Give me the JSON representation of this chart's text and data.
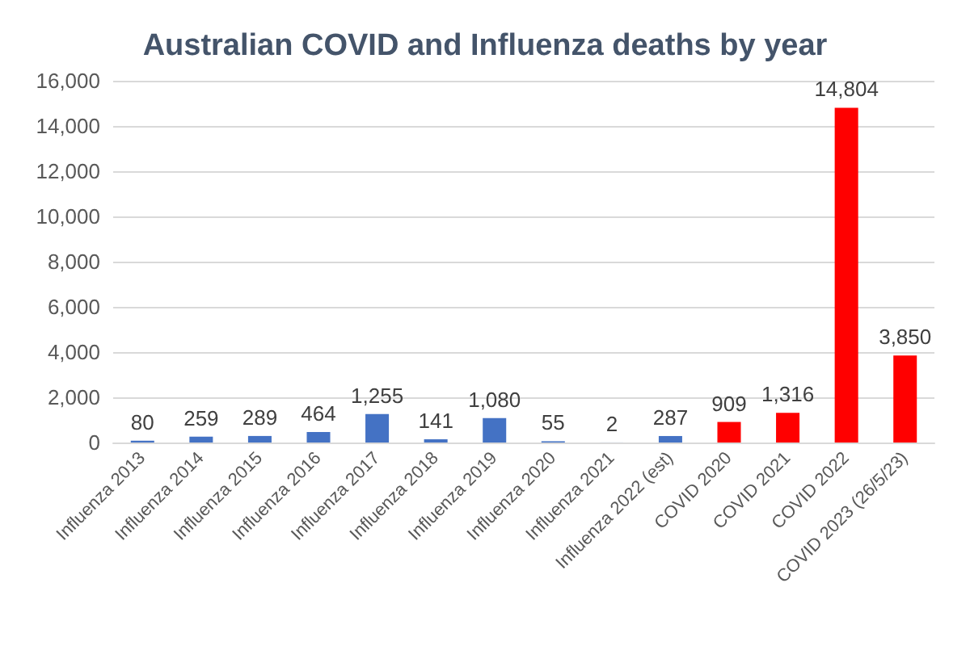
{
  "chart_data": {
    "type": "bar",
    "title": "Australian COVID and Influenza deaths by year",
    "categories": [
      "Influenza 2013",
      "Influenza 2014",
      "Influenza 2015",
      "Influenza 2016",
      "Influenza 2017",
      "Influenza 2018",
      "Influenza 2019",
      "Influenza 2020",
      "Influenza 2021",
      "Influenza 2022 (est)",
      "COVID 2020",
      "COVID 2021",
      "COVID 2022",
      "COVID 2023 (26/5/23)"
    ],
    "values": [
      80,
      259,
      289,
      464,
      1255,
      141,
      1080,
      55,
      2,
      287,
      909,
      1316,
      14804,
      3850
    ],
    "colors": [
      "#4472c4",
      "#4472c4",
      "#4472c4",
      "#4472c4",
      "#4472c4",
      "#4472c4",
      "#4472c4",
      "#4472c4",
      "#4472c4",
      "#4472c4",
      "#ff0000",
      "#ff0000",
      "#ff0000",
      "#ff0000"
    ],
    "value_labels": [
      "80",
      "259",
      "289",
      "464",
      "1,255",
      "141",
      "1,080",
      "55",
      "2",
      "287",
      "909",
      "1,316",
      "14,804",
      "3,850"
    ],
    "ylim": [
      0,
      16000
    ],
    "yticks": [
      {
        "value": 0,
        "label": "0"
      },
      {
        "value": 2000,
        "label": "2,000"
      },
      {
        "value": 4000,
        "label": "4,000"
      },
      {
        "value": 6000,
        "label": "6,000"
      },
      {
        "value": 8000,
        "label": "8,000"
      },
      {
        "value": 10000,
        "label": "10,000"
      },
      {
        "value": 12000,
        "label": "12,000"
      },
      {
        "value": 14000,
        "label": "14,000"
      },
      {
        "value": 16000,
        "label": "16,000"
      }
    ],
    "grid": "y"
  }
}
